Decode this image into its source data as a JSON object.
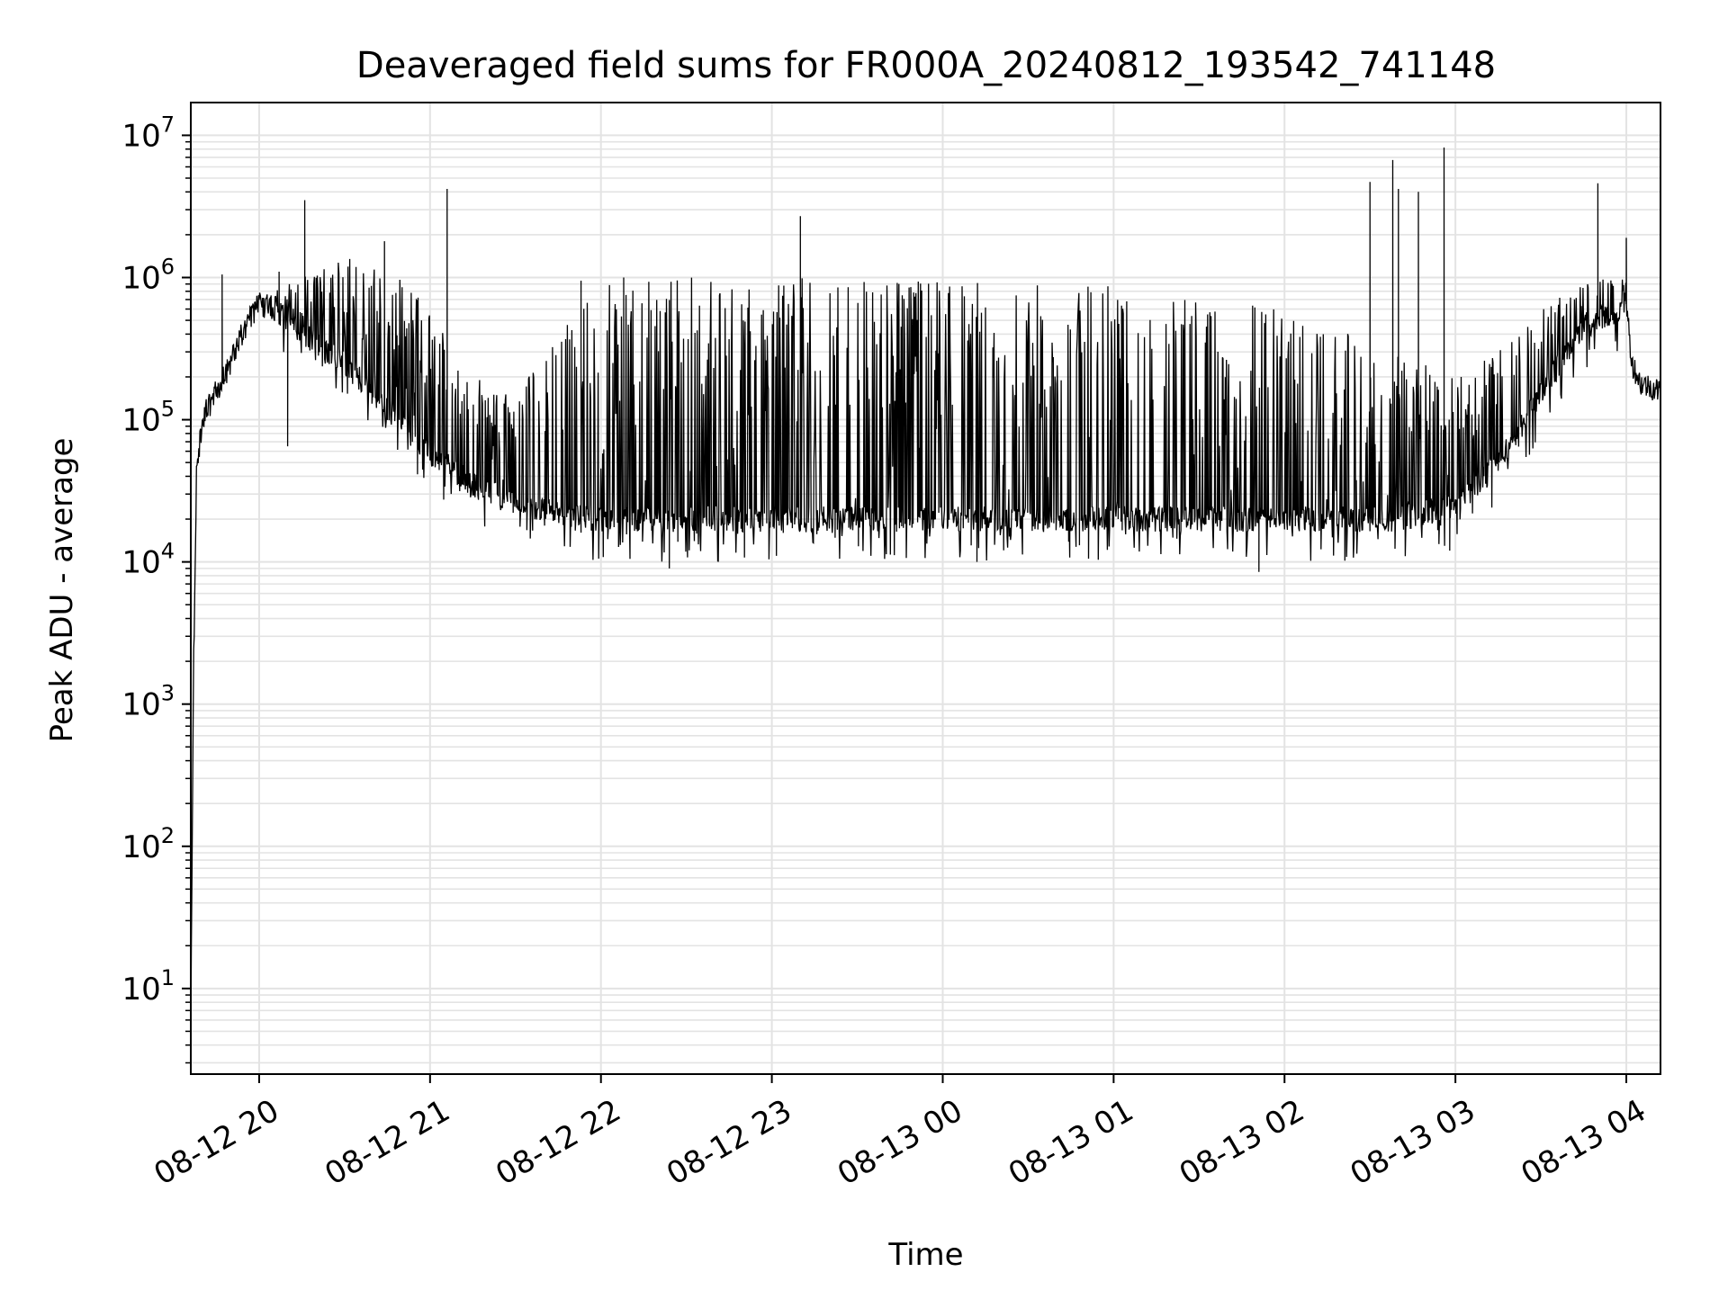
{
  "chart_data": {
    "type": "line",
    "title": "Deaveraged field sums for FR000A_20240812_193542_741148",
    "xlabel": "Time",
    "ylabel": "Peak ADU - average",
    "yscale": "log",
    "ylim": [
      2.5,
      17000000
    ],
    "xlim": [
      "2024-08-12 19:36",
      "2024-08-13 04:12"
    ],
    "grid": true,
    "x_ticks": [
      "08-12 20",
      "08-12 21",
      "08-12 22",
      "08-12 23",
      "08-13 00",
      "08-13 01",
      "08-13 02",
      "08-13 03",
      "08-13 04"
    ],
    "y_ticks": [
      {
        "base": "10",
        "exp": "1"
      },
      {
        "base": "10",
        "exp": "2"
      },
      {
        "base": "10",
        "exp": "3"
      },
      {
        "base": "10",
        "exp": "4"
      },
      {
        "base": "10",
        "exp": "5"
      },
      {
        "base": "10",
        "exp": "6"
      },
      {
        "base": "10",
        "exp": "7"
      }
    ],
    "colors": {
      "line": "#000000",
      "grid": "#e3e3e3",
      "axes": "#000000"
    },
    "baseline": [
      [
        "2024-08-12 19:36",
        5
      ],
      [
        "2024-08-12 19:37",
        2000
      ],
      [
        "2024-08-12 19:38",
        40000
      ],
      [
        "2024-08-12 19:40",
        100000
      ],
      [
        "2024-08-12 19:45",
        160000
      ],
      [
        "2024-08-12 19:50",
        250000
      ],
      [
        "2024-08-12 19:55",
        450000
      ],
      [
        "2024-08-12 20:00",
        650000
      ],
      [
        "2024-08-12 20:05",
        620000
      ],
      [
        "2024-08-12 20:10",
        500000
      ],
      [
        "2024-08-12 20:15",
        400000
      ],
      [
        "2024-08-12 20:30",
        250000
      ],
      [
        "2024-08-12 20:45",
        120000
      ],
      [
        "2024-08-12 21:00",
        60000
      ],
      [
        "2024-08-12 21:15",
        35000
      ],
      [
        "2024-08-12 21:30",
        25000
      ],
      [
        "2024-08-12 21:45",
        22000
      ],
      [
        "2024-08-12 22:00",
        20000
      ],
      [
        "2024-08-12 23:00",
        20000
      ],
      [
        "2024-08-13 00:00",
        20000
      ],
      [
        "2024-08-13 01:00",
        20000
      ],
      [
        "2024-08-13 02:00",
        20000
      ],
      [
        "2024-08-13 02:40",
        20000
      ],
      [
        "2024-08-13 03:00",
        25000
      ],
      [
        "2024-08-13 03:15",
        50000
      ],
      [
        "2024-08-13 03:30",
        150000
      ],
      [
        "2024-08-13 03:45",
        450000
      ],
      [
        "2024-08-13 04:00",
        650000
      ],
      [
        "2024-08-13 04:02",
        250000
      ],
      [
        "2024-08-13 04:05",
        180000
      ],
      [
        "2024-08-13 04:12",
        160000
      ]
    ],
    "envelope_max": [
      [
        "2024-08-12 20:00",
        700000
      ],
      [
        "2024-08-12 20:15",
        1000000
      ],
      [
        "2024-08-12 20:30",
        1400000
      ],
      [
        "2024-08-12 20:45",
        1200000
      ],
      [
        "2024-08-12 21:00",
        600000
      ],
      [
        "2024-08-12 21:15",
        200000
      ],
      [
        "2024-08-12 21:30",
        150000
      ],
      [
        "2024-08-12 21:45",
        400000
      ],
      [
        "2024-08-12 22:00",
        900000
      ],
      [
        "2024-08-12 22:30",
        1000000
      ],
      [
        "2024-08-12 23:00",
        1000000
      ],
      [
        "2024-08-13 00:00",
        950000
      ],
      [
        "2024-08-13 01:00",
        900000
      ],
      [
        "2024-08-13 01:30",
        700000
      ],
      [
        "2024-08-13 02:00",
        600000
      ],
      [
        "2024-08-13 02:30",
        400000
      ],
      [
        "2024-08-13 03:00",
        200000
      ],
      [
        "2024-08-13 03:15",
        300000
      ],
      [
        "2024-08-13 03:30",
        600000
      ],
      [
        "2024-08-13 03:45",
        1000000
      ],
      [
        "2024-08-13 04:00",
        1100000
      ]
    ],
    "spikes": [
      [
        "2024-08-12 19:47",
        1050000
      ],
      [
        "2024-08-12 20:07",
        1100000
      ],
      [
        "2024-08-12 20:10",
        65000
      ],
      [
        "2024-08-12 20:16",
        3500000
      ],
      [
        "2024-08-12 20:44",
        1800000
      ],
      [
        "2024-08-12 21:06",
        4200000
      ],
      [
        "2024-08-12 21:26",
        130000
      ],
      [
        "2024-08-12 21:53",
        950000
      ],
      [
        "2024-08-12 22:08",
        1000000
      ],
      [
        "2024-08-12 22:24",
        9000
      ],
      [
        "2024-08-12 23:10",
        2700000
      ],
      [
        "2024-08-13 00:12",
        10000
      ],
      [
        "2024-08-13 01:51",
        8500
      ],
      [
        "2024-08-13 02:30",
        4700000
      ],
      [
        "2024-08-13 02:38",
        6700000
      ],
      [
        "2024-08-13 02:40",
        4200000
      ],
      [
        "2024-08-13 02:47",
        4000000
      ],
      [
        "2024-08-13 02:56",
        8200000
      ],
      [
        "2024-08-13 02:58",
        12000
      ],
      [
        "2024-08-13 03:50",
        4600000
      ],
      [
        "2024-08-13 04:00",
        1900000
      ]
    ]
  }
}
